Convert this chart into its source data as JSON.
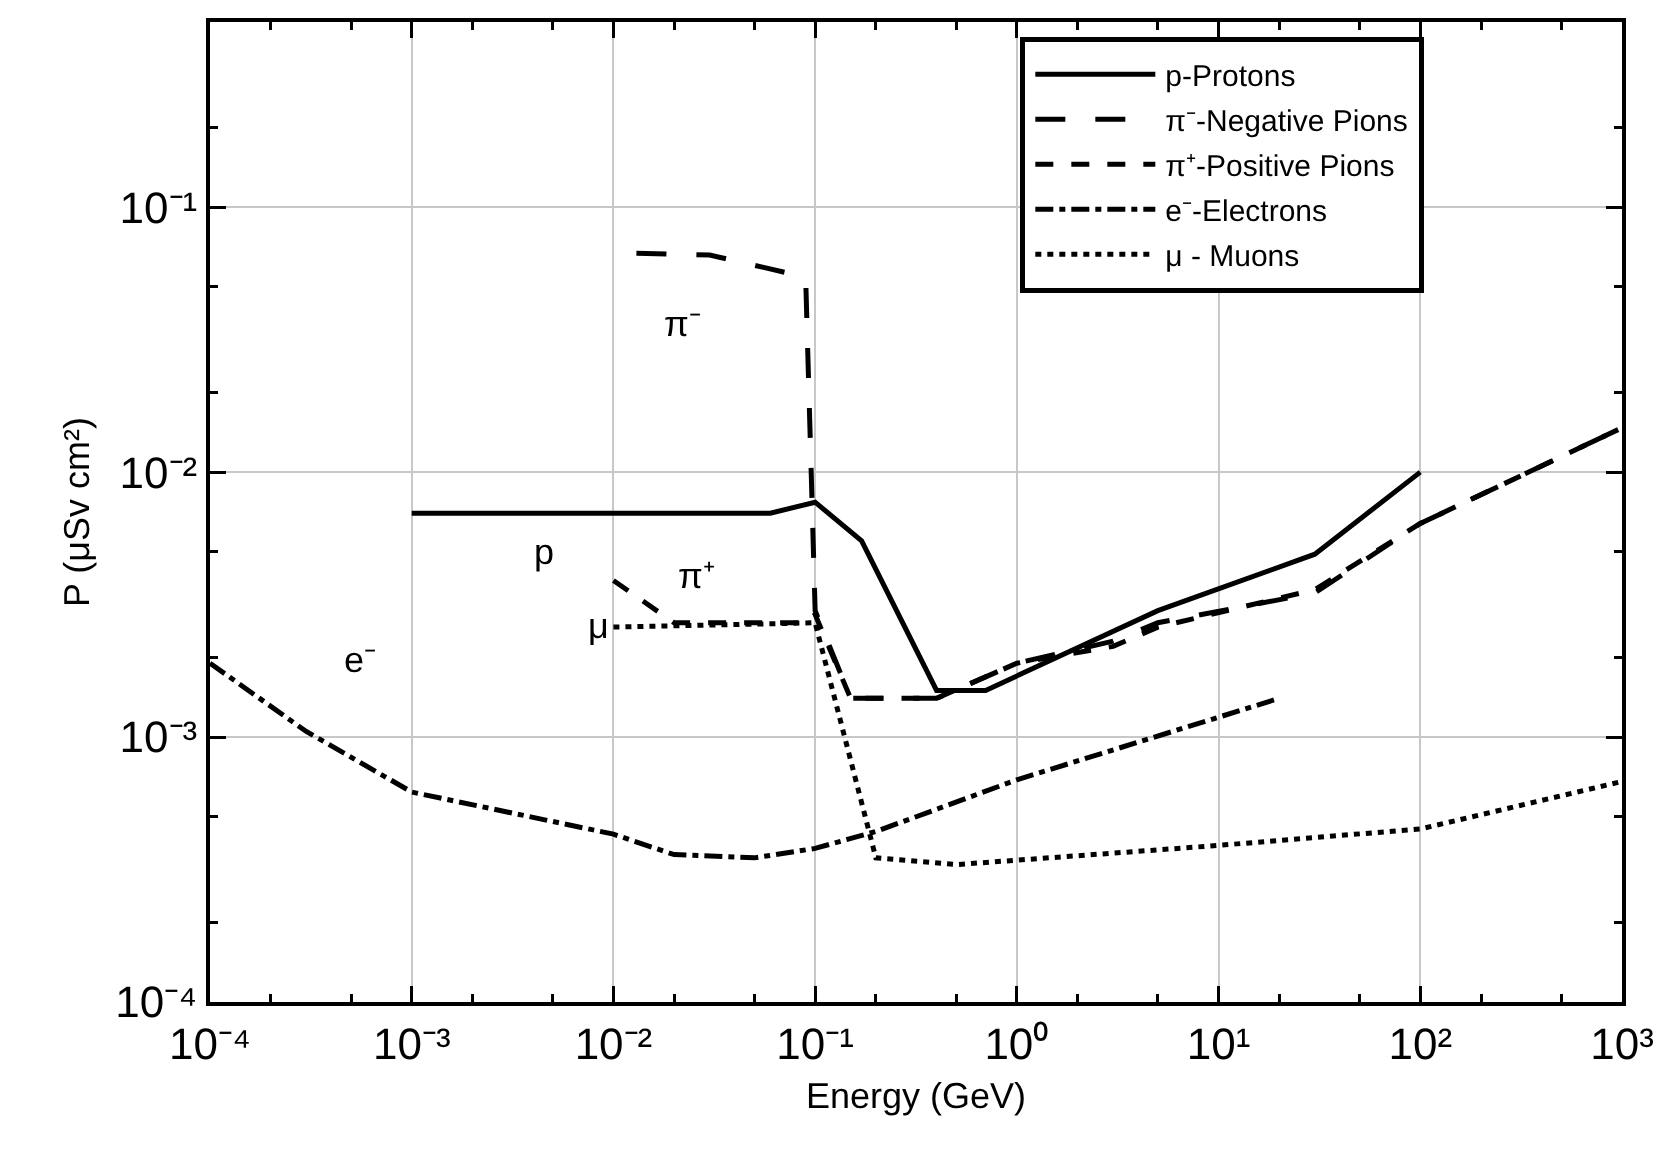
{
  "chart_data": {
    "type": "line",
    "xlabel": "Energy (GeV)",
    "ylabel": "P (μSv cm²)",
    "log": "xy",
    "grid": true,
    "legend": "top right",
    "xlim": [
      0.0001,
      1000
    ],
    "xticks": [
      {
        "value": 0.0001,
        "label": "10⁻⁴"
      },
      {
        "value": 0.001,
        "label": "10⁻³"
      },
      {
        "value": 0.01,
        "label": "10⁻²"
      },
      {
        "value": 0.1,
        "label": "10⁻¹"
      },
      {
        "value": 1,
        "label": "10⁰"
      },
      {
        "value": 10,
        "label": "10¹"
      },
      {
        "value": 100,
        "label": "10²"
      },
      {
        "value": 1000,
        "label": "10³"
      }
    ],
    "ylim": [
      0.0001,
      0.5
    ],
    "yticks": [
      {
        "value": 0.0001,
        "label": "10⁻⁴"
      },
      {
        "value": 0.001,
        "label": "10⁻³"
      },
      {
        "value": 0.01,
        "label": "10⁻²"
      },
      {
        "value": 0.1,
        "label": "10⁻¹"
      }
    ],
    "series": [
      {
        "name": "p-Protons",
        "color": "#000000",
        "line_style": "solid",
        "x": [
          0.001,
          0.06,
          0.1,
          0.17,
          0.4,
          0.7,
          5,
          30,
          100
        ],
        "values": [
          0.007,
          0.007,
          0.0077,
          0.0055,
          0.0015,
          0.0015,
          0.003,
          0.0049,
          0.01
        ]
      },
      {
        "name": "π⁻-Negative Pions",
        "color": "#000000",
        "line_style": "longdash",
        "x": [
          0.013,
          0.03,
          0.085,
          0.09,
          0.1,
          0.15,
          0.4,
          1,
          3,
          5,
          30,
          100,
          1000
        ],
        "values": [
          0.067,
          0.066,
          0.055,
          0.05,
          0.003,
          0.0014,
          0.0014,
          0.0019,
          0.0023,
          0.0027,
          0.0035,
          0.0064,
          0.0147
        ]
      },
      {
        "name": "π⁺-Positive Pions",
        "color": "#000000",
        "line_style": "dashed",
        "x": [
          0.01,
          0.02,
          0.09,
          0.1,
          0.15,
          0.4,
          1,
          3,
          5,
          30,
          100,
          1000
        ],
        "values": [
          0.0039,
          0.0027,
          0.0027,
          0.0029,
          0.0014,
          0.0014,
          0.0019,
          0.0022,
          0.0026,
          0.0036,
          0.0064,
          0.0147
        ]
      },
      {
        "name": "e⁻-Electrons",
        "color": "#000000",
        "line_style": "dashdot",
        "x": [
          0.0001,
          0.0003,
          0.001,
          0.01,
          0.02,
          0.05,
          0.1,
          0.2,
          1,
          20
        ],
        "values": [
          0.0019,
          0.00105,
          0.00062,
          0.00043,
          0.00036,
          0.00035,
          0.00038,
          0.00044,
          0.00069,
          0.0014
        ]
      },
      {
        "name": "μ - Muons",
        "color": "#000000",
        "line_style": "dotted",
        "x": [
          0.01,
          0.1,
          0.2,
          0.5,
          10,
          100,
          1000
        ],
        "values": [
          0.0026,
          0.0027,
          0.00035,
          0.00033,
          0.00039,
          0.00045,
          0.00068
        ]
      }
    ],
    "annotations": [
      "π⁻",
      "p",
      "π⁺",
      "μ",
      "e⁻"
    ]
  }
}
